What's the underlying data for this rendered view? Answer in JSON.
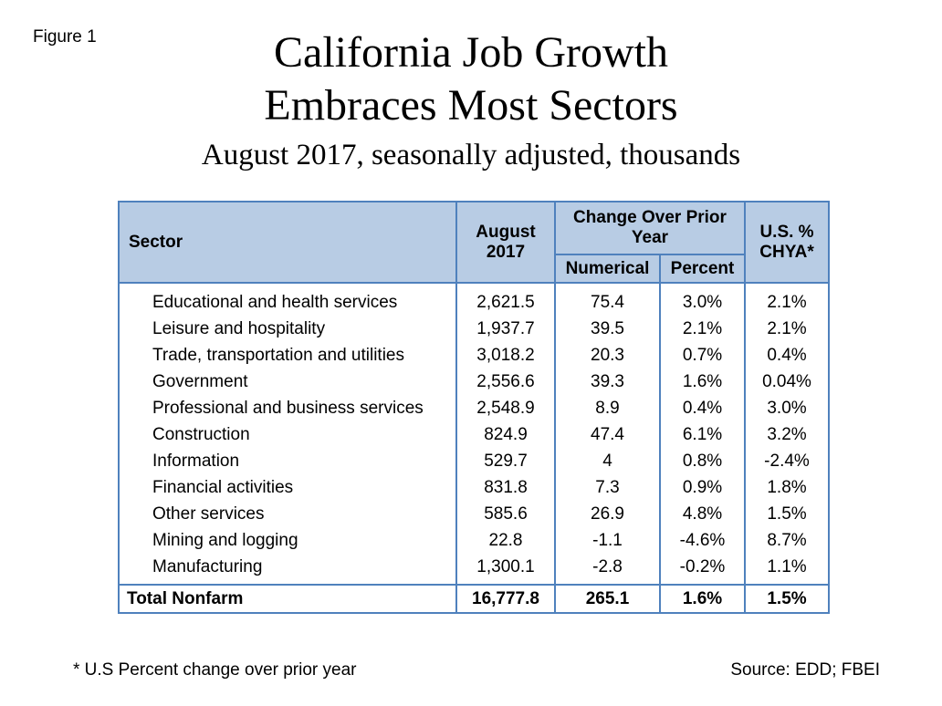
{
  "figure_label": "Figure 1",
  "title_line1": "California Job Growth",
  "title_line2": "Embraces Most Sectors",
  "subtitle": "August 2017, seasonally adjusted, thousands",
  "table": {
    "headers": {
      "sector": "Sector",
      "august": "August 2017",
      "change": "Change Over Prior Year",
      "numerical": "Numerical",
      "percent": "Percent",
      "us": "U.S. % CHYA*"
    },
    "rows": [
      [
        "Educational and health services",
        "2,621.5",
        "75.4",
        "3.0%",
        "2.1%"
      ],
      [
        "Leisure and hospitality",
        "1,937.7",
        "39.5",
        "2.1%",
        "2.1%"
      ],
      [
        "Trade, transportation and utilities",
        "3,018.2",
        "20.3",
        "0.7%",
        "0.4%"
      ],
      [
        "Government",
        "2,556.6",
        "39.3",
        "1.6%",
        "0.04%"
      ],
      [
        "Professional and business services",
        "2,548.9",
        "8.9",
        "0.4%",
        "3.0%"
      ],
      [
        "Construction",
        "824.9",
        "47.4",
        "6.1%",
        "3.2%"
      ],
      [
        "Information",
        "529.7",
        "4",
        "0.8%",
        "-2.4%"
      ],
      [
        "Financial activities",
        "831.8",
        "7.3",
        "0.9%",
        "1.8%"
      ],
      [
        "Other services",
        "585.6",
        "26.9",
        "4.8%",
        "1.5%"
      ],
      [
        "Mining and logging",
        "22.8",
        "-1.1",
        "-4.6%",
        "8.7%"
      ],
      [
        "Manufacturing",
        "1,300.1",
        "-2.8",
        "-0.2%",
        "1.1%"
      ]
    ],
    "total": [
      "Total Nonfarm",
      "16,777.8",
      "265.1",
      "1.6%",
      "1.5%"
    ]
  },
  "footnote": "* U.S Percent change over prior year",
  "source": "Source: EDD; FBEI",
  "colors": {
    "header_bg": "#b8cce4",
    "border": "#4f81bd"
  }
}
